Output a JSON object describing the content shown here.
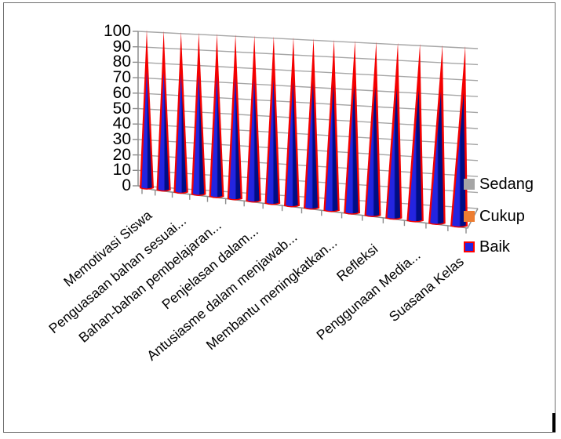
{
  "page": {
    "background_color": "#FFFFFF",
    "frame_color": "#6E6E6E",
    "cursor_bar_color": "#000000"
  },
  "chart_data": {
    "type": "bar",
    "style": "3d-cone",
    "title": "",
    "xlabel": "",
    "ylabel": "",
    "n_categories": 17,
    "visible_category_labels": [
      "Memotivasi Siswa",
      "Penguasaan bahan sesuai...",
      "Bahan-bahan pembelajaran...",
      "Penjelasan dalam...",
      "Antusiasme dalam menjawab...",
      "Membantu meningkatkan...",
      "Refleksi",
      "Penggunaan Media...",
      "Suasana Kelas"
    ],
    "label_positions": [
      0,
      2,
      4,
      6,
      8,
      10,
      12,
      14,
      16
    ],
    "yticks": [
      100,
      90,
      80,
      70,
      60,
      50,
      40,
      30,
      20,
      10,
      0
    ],
    "ylim": [
      0,
      100
    ],
    "grid": true,
    "gridline_color": "#A6A6A6",
    "axis_color": "#8C8C8C",
    "legend_position": "right",
    "series": [
      {
        "name": "Sedang",
        "color": "#A5A5A5",
        "values": [
          0,
          0,
          0,
          0,
          0,
          0,
          0,
          0,
          0,
          0,
          0,
          0,
          0,
          0,
          0,
          0,
          0
        ]
      },
      {
        "name": "Cukup",
        "color": "#ED7D31",
        "values": [
          0,
          0,
          0,
          0,
          0,
          0,
          0,
          0,
          0,
          0,
          0,
          0,
          0,
          0,
          0,
          0,
          0
        ]
      },
      {
        "name": "Baik",
        "color": "#2424E0",
        "shade_color": "#000D85",
        "border_color": "#F40000",
        "values": [
          100,
          100,
          100,
          100,
          100,
          100,
          100,
          100,
          100,
          100,
          100,
          100,
          100,
          100,
          100,
          100,
          100
        ]
      }
    ]
  },
  "legend": {
    "items": [
      {
        "label": "Sedang",
        "color": "#A5A5A5",
        "border": "#A5A5A5"
      },
      {
        "label": "Cukup",
        "color": "#ED7D31",
        "border": "#ED7D31"
      },
      {
        "label": "Baik",
        "color": "#2424E0",
        "border": "#FF0000"
      }
    ]
  }
}
